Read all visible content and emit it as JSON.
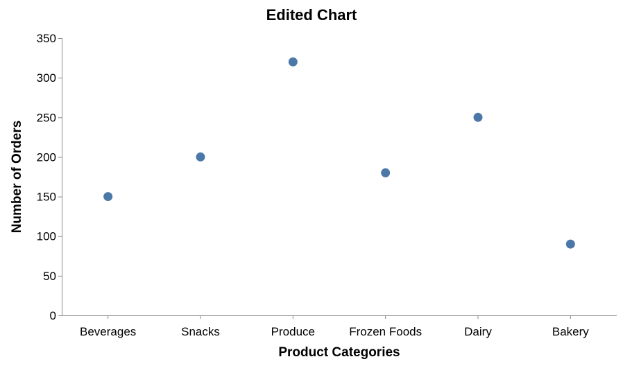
{
  "chart_data": {
    "type": "scatter",
    "title": "Edited Chart",
    "xlabel": "Product Categories",
    "ylabel": "Number of Orders",
    "categories": [
      "Beverages",
      "Snacks",
      "Produce",
      "Frozen Foods",
      "Dairy",
      "Bakery"
    ],
    "values": [
      150,
      200,
      320,
      180,
      250,
      90
    ],
    "y_ticks": [
      "0",
      "50",
      "100",
      "150",
      "200",
      "250",
      "300",
      "350"
    ],
    "ylim": [
      0,
      350
    ],
    "grid": false,
    "legend": "none",
    "point_color": "#4c78a8"
  }
}
